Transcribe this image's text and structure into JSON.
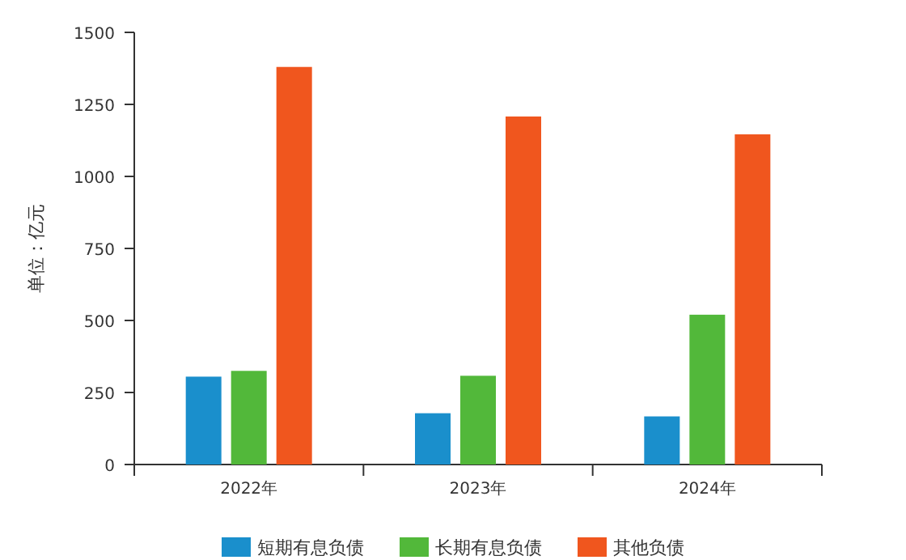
{
  "chart_data": {
    "type": "bar",
    "ylabel": "单位：亿元",
    "categories": [
      "2022年",
      "2023年",
      "2024年"
    ],
    "series": [
      {
        "name": "短期有息负债",
        "color": "#1a8fcc",
        "values": [
          305,
          178,
          167
        ]
      },
      {
        "name": "长期有息负债",
        "color": "#52b83a",
        "values": [
          325,
          308,
          520
        ]
      },
      {
        "name": "其他负债",
        "color": "#f0561e",
        "values": [
          1380,
          1208,
          1146
        ]
      }
    ],
    "ylim": [
      0,
      1500
    ],
    "yticks": [
      0,
      250,
      500,
      750,
      1000,
      1250,
      1500
    ],
    "grid": false,
    "legend": "bottom"
  }
}
